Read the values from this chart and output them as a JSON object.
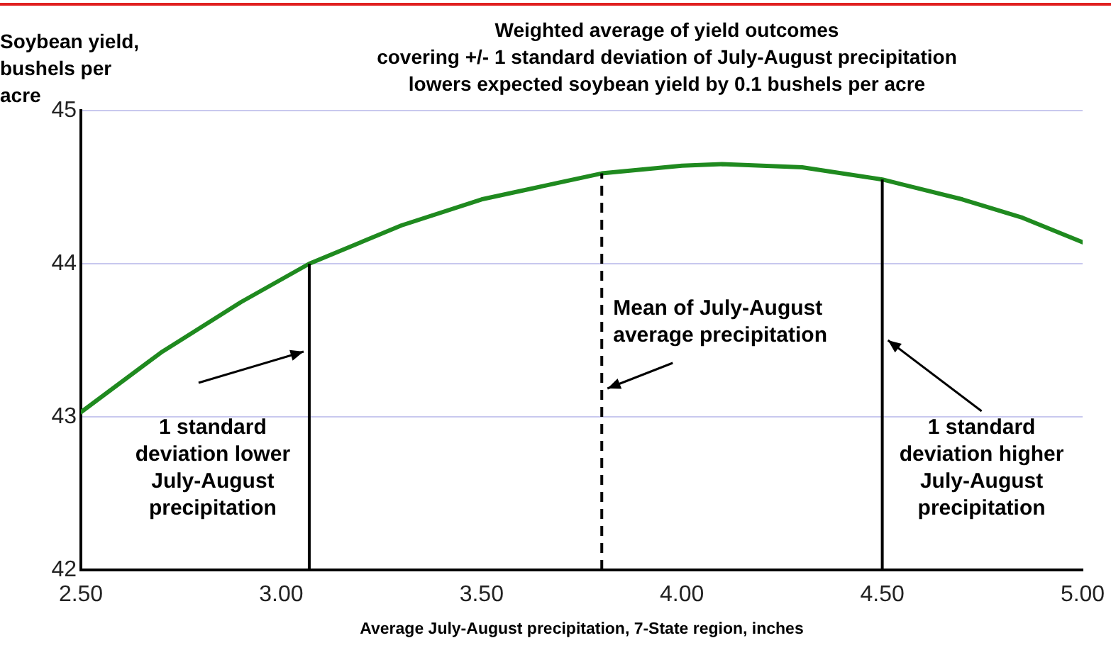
{
  "chart_data": {
    "type": "line",
    "title": "Weighted average of yield outcomes\ncovering +/- 1 standard deviation of July-August precipitation\nlowers expected soybean yield by 0.1 bushels per acre",
    "ylabel": "Soybean yield,\nbushels per acre",
    "xlabel": "Average July-August precipitation, 7-State region, inches",
    "series": [
      {
        "color": "#1f8a1f",
        "x": [
          2.5,
          2.7,
          2.9,
          3.07,
          3.3,
          3.5,
          3.8,
          4.0,
          4.1,
          4.3,
          4.5,
          4.7,
          4.85,
          5.0
        ],
        "values": [
          43.03,
          43.42,
          43.75,
          44.0,
          44.25,
          44.42,
          44.59,
          44.64,
          44.65,
          44.63,
          44.55,
          44.42,
          44.3,
          44.14
        ]
      }
    ],
    "xlim": [
      2.5,
      5.0
    ],
    "xticks": [
      {
        "value": 2.5,
        "label": "2.50"
      },
      {
        "value": 3.0,
        "label": "3.00"
      },
      {
        "value": 3.5,
        "label": "3.50"
      },
      {
        "value": 4.0,
        "label": "4.00"
      },
      {
        "value": 4.5,
        "label": "4.50"
      },
      {
        "value": 5.0,
        "label": "5.00"
      }
    ],
    "ylim": [
      42,
      45
    ],
    "yticks": [
      42,
      43,
      44,
      45
    ],
    "grid": "y",
    "legend": false,
    "marker": "none",
    "line_style": "solid",
    "ref_lines": [
      {
        "axis": "x",
        "value": 3.07,
        "label": "1 standard deviation lower July-August precipitation",
        "color": "#000000",
        "line_style": "solid"
      },
      {
        "axis": "x",
        "value": 3.8,
        "label": "Mean of July-August average precipitation",
        "color": "#000000",
        "line_style": "dashed"
      },
      {
        "axis": "x",
        "value": 4.5,
        "label": "1 standard deviation higher July-August precipitation",
        "color": "#000000",
        "line_style": "solid"
      }
    ]
  }
}
